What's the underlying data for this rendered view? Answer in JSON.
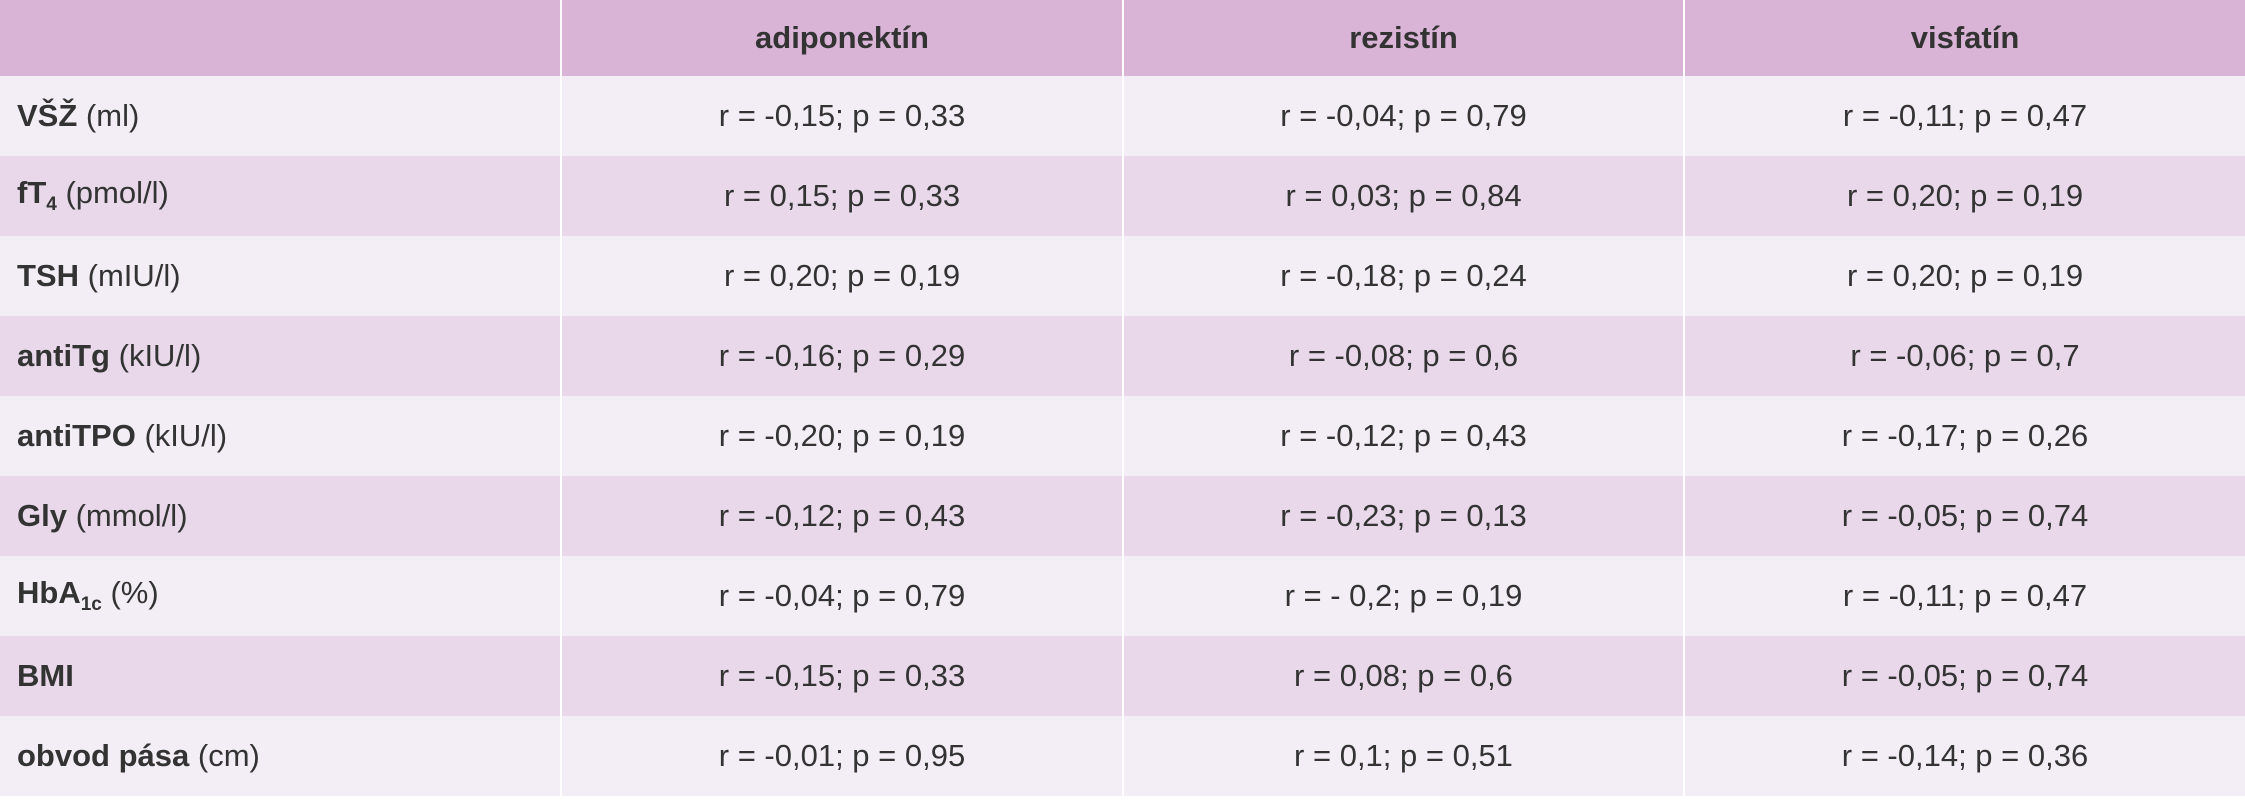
{
  "table": {
    "columns": [
      "adiponektín",
      "rezistín",
      "visfatín"
    ],
    "rows": [
      {
        "label": {
          "name": "VŠŽ",
          "unit": "(ml)"
        },
        "cells": [
          "r = -0,15; p = 0,33",
          "r = -0,04; p = 0,79",
          "r = -0,11; p = 0,47"
        ]
      },
      {
        "label": {
          "name": "fT",
          "sub": "4",
          "unit": "(pmol/l)"
        },
        "cells": [
          "r = 0,15; p = 0,33",
          "r = 0,03; p = 0,84",
          "r = 0,20; p = 0,19"
        ]
      },
      {
        "label": {
          "name": "TSH",
          "unit": "(mIU/l)"
        },
        "cells": [
          "r = 0,20; p = 0,19",
          "r = -0,18; p = 0,24",
          "r = 0,20; p = 0,19"
        ]
      },
      {
        "label": {
          "name": "antiTg",
          "unit": "(kIU/l)"
        },
        "cells": [
          "r = -0,16; p = 0,29",
          "r = -0,08; p = 0,6",
          "r = -0,06; p = 0,7"
        ]
      },
      {
        "label": {
          "name": "antiTPO",
          "unit": "(kIU/l)"
        },
        "cells": [
          "r = -0,20; p = 0,19",
          "r = -0,12; p = 0,43",
          "r = -0,17; p = 0,26"
        ]
      },
      {
        "label": {
          "name": "Gly",
          "unit": "(mmol/l)"
        },
        "cells": [
          "r = -0,12; p = 0,43",
          "r = -0,23; p = 0,13",
          "r = -0,05; p = 0,74"
        ]
      },
      {
        "label": {
          "name": "HbA",
          "sub": "1c",
          "unit": "(%)"
        },
        "cells": [
          "r = -0,04; p = 0,79",
          "r = - 0,2; p = 0,19",
          "r = -0,11; p = 0,47"
        ]
      },
      {
        "label": {
          "name": "BMI"
        },
        "cells": [
          "r = -0,15; p = 0,33",
          "r = 0,08; p = 0,6",
          "r = -0,05; p = 0,74"
        ]
      },
      {
        "label": {
          "name": "obvod pása",
          "unit": "(cm)"
        },
        "cells": [
          "r = -0,01; p = 0,95",
          "r = 0,1; p = 0,51",
          "r = -0,14; p = 0,36"
        ]
      }
    ]
  }
}
